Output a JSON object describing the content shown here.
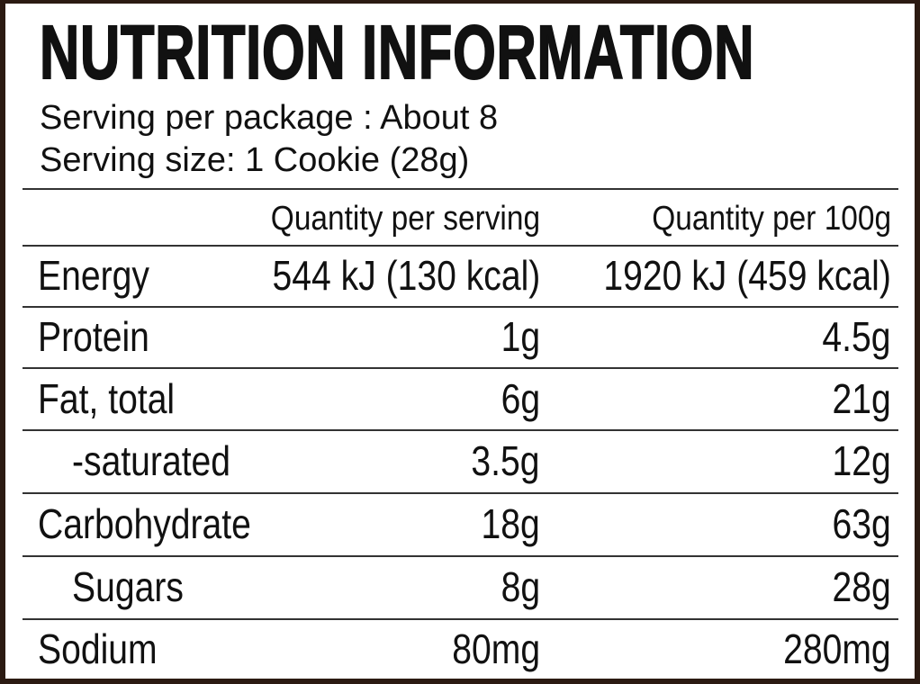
{
  "title": "NUTRITION INFORMATION",
  "serving": [
    "Serving per package : About 8",
    "Serving size: 1 Cookie (28g)"
  ],
  "table": {
    "columns": [
      "Quantity per serving",
      "Quantity per 100g"
    ],
    "rows": [
      [
        "Energy",
        "544 kJ (130 kcal)",
        "1920 kJ (459 kcal)"
      ],
      [
        "Protein",
        "1g",
        "4.5g"
      ],
      [
        "Fat, total",
        "6g",
        "21g"
      ],
      [
        "-saturated",
        "3.5g",
        "12g"
      ],
      [
        "Carbohydrate",
        "18g",
        "63g"
      ],
      [
        "Sugars",
        "8g",
        "28g"
      ],
      [
        "Sodium",
        "80mg",
        "280mg"
      ]
    ]
  }
}
